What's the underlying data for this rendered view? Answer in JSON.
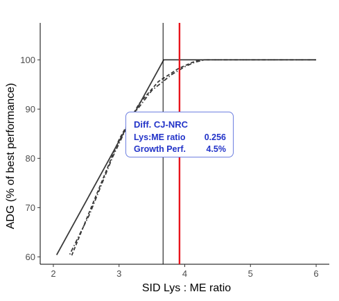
{
  "chart_data": {
    "type": "line",
    "xlabel": "SID Lys : ME ratio",
    "ylabel": "ADG (% of best performance)",
    "xlim": [
      1.8,
      6.2
    ],
    "ylim": [
      58.5,
      107.5
    ],
    "x_ticks": [
      2,
      3,
      4,
      5,
      6
    ],
    "y_ticks": [
      60,
      70,
      80,
      90,
      100
    ],
    "grid": false,
    "series": [
      {
        "style": "solid",
        "color": "#3a3a3a",
        "x": [
          2.05,
          3.68,
          6.0
        ],
        "y": [
          60.4,
          100.0,
          100.0
        ]
      },
      {
        "style": "dashed",
        "color": "#3a3a3a",
        "x": [
          2.28,
          2.6,
          3.0,
          3.3,
          3.6,
          3.9,
          4.1,
          4.2,
          4.3,
          6.0
        ],
        "y": [
          60.3,
          70.8,
          83.8,
          91.0,
          95.6,
          98.2,
          99.4,
          99.9,
          100.0,
          100.0
        ]
      },
      {
        "style": "dotdash",
        "color": "#3a3a3a",
        "x": [
          2.25,
          2.55,
          2.9,
          3.2,
          3.5,
          3.8,
          4.0,
          4.15,
          4.3,
          6.0
        ],
        "y": [
          60.5,
          68.6,
          80.2,
          88.6,
          93.8,
          97.0,
          98.6,
          99.5,
          100.0,
          100.0
        ]
      }
    ],
    "vlines": [
      {
        "x": 3.67,
        "color": "#000000"
      },
      {
        "x": 3.92,
        "color": "#e8141c"
      }
    ],
    "annotation": {
      "title": "Diff. CJ-NRC",
      "rows": [
        {
          "label": "Lys:ME ratio",
          "value": "0.256"
        },
        {
          "label": "Growth Perf.",
          "value": "4.5%"
        }
      ],
      "text_color": "#2233c8",
      "border_color": "#6d7fe0"
    }
  }
}
